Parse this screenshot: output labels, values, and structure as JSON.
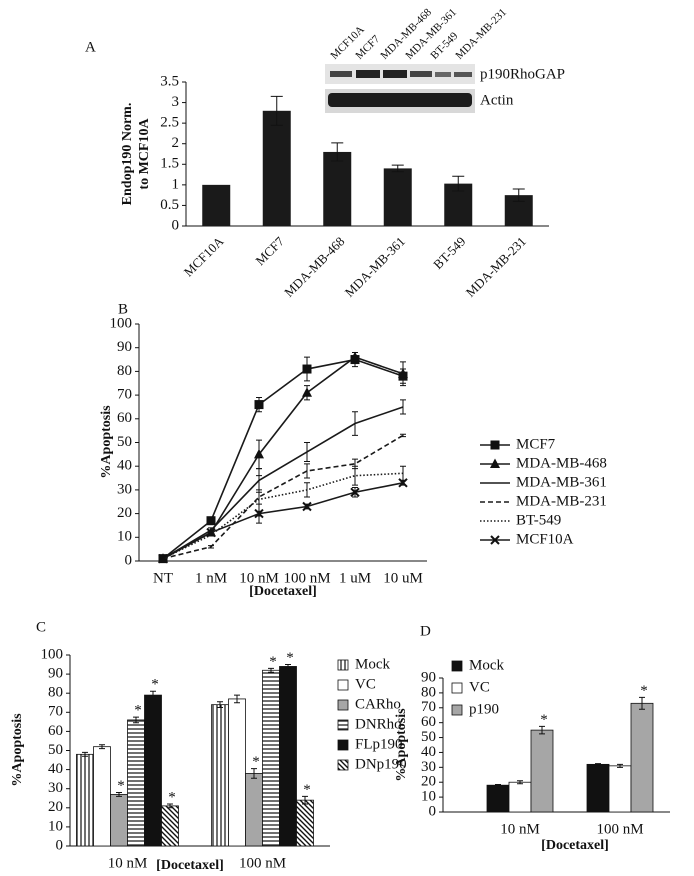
{
  "chart_data": [
    {
      "type": "bar",
      "panel": "A",
      "y_label": [
        "Endop190 Norm.",
        "to MCF10A"
      ],
      "categories": [
        "MCF10A",
        "MCF7",
        "MDA-MB-468",
        "MDA-MB-361",
        "BT-549",
        "MDA-MB-231"
      ],
      "values": [
        1.0,
        2.8,
        1.8,
        1.4,
        1.03,
        0.75
      ],
      "errors": [
        0,
        0.35,
        0.22,
        0.08,
        0.18,
        0.15
      ],
      "color": "#1a1a1a",
      "ylim": [
        0,
        3.5
      ],
      "yticks": [
        0,
        0.5,
        1,
        1.5,
        2,
        2.5,
        3,
        3.5
      ],
      "inset": {
        "lanes": [
          "MCF10A",
          "MCF7",
          "MDA-MB-468",
          "MDA-MB-361",
          "BT-549",
          "MDA-MB-231"
        ],
        "bands": [
          "p190RhoGAP",
          "Actin"
        ]
      }
    },
    {
      "type": "line",
      "panel": "B",
      "y_label": "%Apoptosis",
      "x_label": "[Docetaxel]",
      "categories": [
        "NT",
        "1 nM",
        "10 nM",
        "100 nM",
        "1 uM",
        "10 uM"
      ],
      "ylim": [
        0,
        100
      ],
      "yticks": [
        0,
        10,
        20,
        30,
        40,
        50,
        60,
        70,
        80,
        90,
        100
      ],
      "series": [
        {
          "name": "MCF7",
          "color": "#1a1a1a",
          "dash": "solid",
          "marker": "square",
          "values": [
            1,
            17,
            66,
            81,
            85,
            78
          ],
          "errors": [
            0,
            1,
            3,
            5,
            3,
            3
          ]
        },
        {
          "name": "MDA-MB-468",
          "color": "#1a1a1a",
          "dash": "solid",
          "marker": "triangle",
          "values": [
            1,
            12,
            45,
            71,
            86,
            79
          ],
          "errors": [
            0,
            1,
            6,
            3,
            2,
            5
          ]
        },
        {
          "name": "MDA-MB-361",
          "color": "#1a1a1a",
          "dash": "solid",
          "marker": null,
          "values": [
            1,
            13,
            34,
            46,
            58,
            65
          ],
          "errors": [
            0,
            1,
            5,
            4,
            5,
            3
          ]
        },
        {
          "name": "MDA-MB-231",
          "color": "#1a1a1a",
          "dash": "dashed",
          "marker": null,
          "values": [
            1,
            6,
            27,
            38,
            41,
            53
          ],
          "errors": [
            0,
            0.5,
            3,
            3,
            2,
            0.5
          ]
        },
        {
          "name": "BT-549",
          "color": "#1a1a1a",
          "dash": "dotted",
          "marker": null,
          "values": [
            1,
            11,
            26,
            30,
            36,
            37
          ],
          "errors": [
            0,
            0,
            10,
            3,
            4,
            3
          ]
        },
        {
          "name": "MCF10A",
          "color": "#1a1a1a",
          "dash": "solid",
          "marker": "x",
          "values": [
            1,
            12,
            20,
            23,
            29,
            33
          ],
          "errors": [
            0,
            1,
            1,
            1,
            2,
            1
          ]
        }
      ]
    },
    {
      "type": "grouped_bar",
      "panel": "C",
      "y_label": "%Apoptosis",
      "x_label": "[Docetaxel]",
      "categories": [
        "10 nM",
        "100 nM"
      ],
      "ylim": [
        0,
        100
      ],
      "yticks": [
        0,
        10,
        20,
        30,
        40,
        50,
        60,
        70,
        80,
        90,
        100
      ],
      "series": [
        {
          "name": "Mock",
          "color": "#ffffff",
          "hatch": "vertical",
          "values": [
            48,
            74
          ],
          "errors": [
            1,
            1.5
          ],
          "significance": null
        },
        {
          "name": "VC",
          "color": "#ffffff",
          "hatch": null,
          "values": [
            52,
            77
          ],
          "errors": [
            1,
            2
          ],
          "significance": null
        },
        {
          "name": "CARho",
          "color": "#a6a6a6",
          "hatch": null,
          "values": [
            27,
            38
          ],
          "errors": [
            1,
            2.5
          ],
          "significance": [
            "*",
            "*"
          ]
        },
        {
          "name": "DNRho",
          "color": "#ffffff",
          "hatch": "horizontal",
          "values": [
            66,
            92
          ],
          "errors": [
            1.5,
            1
          ],
          "significance": [
            "*",
            "*"
          ]
        },
        {
          "name": "FLp190",
          "color": "#111111",
          "hatch": null,
          "values": [
            79,
            94
          ],
          "errors": [
            2,
            1
          ],
          "significance": [
            "*",
            "*"
          ]
        },
        {
          "name": "DNp190",
          "color": "#ffffff",
          "hatch": "diagonal",
          "values": [
            21,
            24
          ],
          "errors": [
            1,
            2
          ],
          "significance": [
            "*",
            "*"
          ]
        }
      ]
    },
    {
      "type": "grouped_bar",
      "panel": "D",
      "y_label": "%Apoptosis",
      "x_label": "[Docetaxel]",
      "categories": [
        "10 nM",
        "100 nM"
      ],
      "ylim": [
        0,
        90
      ],
      "yticks": [
        0,
        10,
        20,
        30,
        40,
        50,
        60,
        70,
        80,
        90
      ],
      "series": [
        {
          "name": "Mock",
          "color": "#111111",
          "hatch": null,
          "values": [
            18,
            32
          ],
          "errors": [
            0.5,
            0.5
          ],
          "significance": null
        },
        {
          "name": "VC",
          "color": "#ffffff",
          "hatch": null,
          "values": [
            20,
            31
          ],
          "errors": [
            1,
            1
          ],
          "significance": null
        },
        {
          "name": "p190",
          "color": "#a6a6a6",
          "hatch": null,
          "values": [
            55,
            73
          ],
          "errors": [
            2.5,
            4
          ],
          "significance": [
            "*",
            "*"
          ]
        }
      ]
    }
  ]
}
